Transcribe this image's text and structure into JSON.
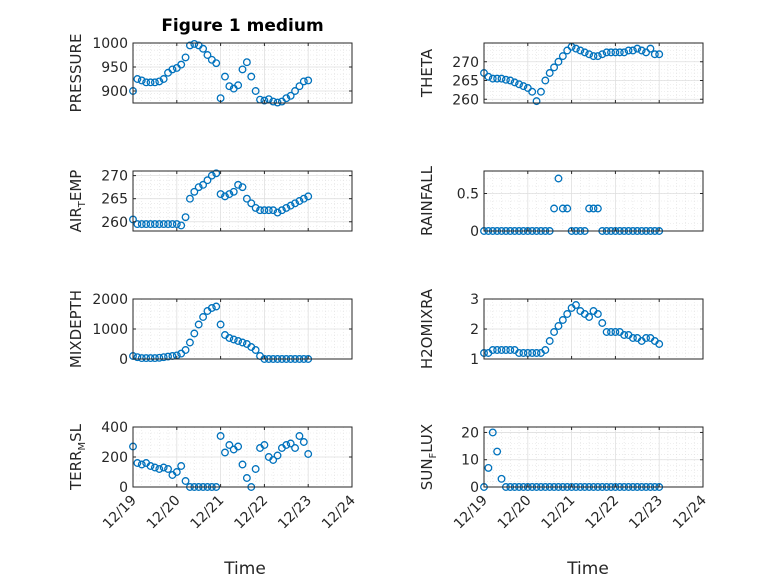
{
  "colors": {
    "marker": "#0072BD",
    "axis": "#262626",
    "grid": "#DFDFDF"
  },
  "chart_data": [
    {
      "type": "scatter",
      "title": "Figure 1 medium",
      "ylabel": "PRESSURE",
      "ylim": [
        875,
        1000
      ],
      "yticks": [
        900,
        950,
        1000
      ],
      "ytick_labels": [
        "900",
        "950",
        "1000"
      ],
      "xlim": [
        0,
        5
      ],
      "xticks": [
        0,
        1,
        2,
        3,
        4,
        5
      ],
      "xtick_labels": [
        "12/19",
        "12/20",
        "12/21",
        "12/22",
        "12/23",
        "12/24"
      ],
      "grid": true,
      "x": [
        0.0,
        0.1,
        0.2,
        0.3,
        0.4,
        0.5,
        0.6,
        0.7,
        0.8,
        0.9,
        1.0,
        1.1,
        1.2,
        1.3,
        1.4,
        1.5,
        1.6,
        1.7,
        1.8,
        1.9,
        2.0,
        2.1,
        2.2,
        2.3,
        2.4,
        2.5,
        2.6,
        2.7,
        2.8,
        2.9,
        3.0,
        3.1,
        3.2,
        3.3,
        3.4,
        3.5,
        3.6,
        3.7,
        3.8,
        3.9,
        4.0
      ],
      "y": [
        900,
        925,
        922,
        918,
        918,
        918,
        920,
        925,
        938,
        945,
        948,
        955,
        970,
        995,
        998,
        995,
        988,
        975,
        965,
        958,
        885,
        930,
        910,
        905,
        912,
        945,
        960,
        930,
        900,
        882,
        880,
        883,
        878,
        876,
        878,
        885,
        890,
        900,
        910,
        920,
        922
      ]
    },
    {
      "type": "scatter",
      "ylabel": "THETA",
      "ylim": [
        259,
        275
      ],
      "yticks": [
        260,
        265,
        270
      ],
      "ytick_labels": [
        "260",
        "265",
        "270"
      ],
      "xlim": [
        0,
        5
      ],
      "xticks": [
        0,
        1,
        2,
        3,
        4,
        5
      ],
      "xtick_labels": [
        "12/19",
        "12/20",
        "12/21",
        "12/22",
        "12/23",
        "12/24"
      ],
      "grid": true,
      "x": [
        0.0,
        0.1,
        0.2,
        0.3,
        0.4,
        0.5,
        0.6,
        0.7,
        0.8,
        0.9,
        1.0,
        1.1,
        1.2,
        1.3,
        1.4,
        1.5,
        1.6,
        1.7,
        1.8,
        1.9,
        2.0,
        2.1,
        2.2,
        2.3,
        2.4,
        2.5,
        2.6,
        2.7,
        2.8,
        2.9,
        3.0,
        3.1,
        3.2,
        3.3,
        3.4,
        3.5,
        3.6,
        3.7,
        3.8,
        3.9,
        4.0
      ],
      "y": [
        267,
        266,
        265.5,
        265.5,
        265.5,
        265.2,
        265,
        264.5,
        264,
        263.5,
        263,
        262,
        259.5,
        262,
        265,
        267,
        268.5,
        270,
        271.5,
        273,
        274,
        273.5,
        273,
        272.5,
        272,
        271.5,
        271.5,
        272,
        272.5,
        272.5,
        272.5,
        272.5,
        272.5,
        273,
        273,
        273.5,
        273,
        272.5,
        273.5,
        272,
        272
      ]
    },
    {
      "type": "scatter",
      "ylabel": "AIR_TEMP",
      "ylim": [
        258,
        271
      ],
      "yticks": [
        260,
        265,
        270
      ],
      "ytick_labels": [
        "260",
        "265",
        "270"
      ],
      "xlim": [
        0,
        5
      ],
      "xticks": [
        0,
        1,
        2,
        3,
        4,
        5
      ],
      "xtick_labels": [
        "12/19",
        "12/20",
        "12/21",
        "12/22",
        "12/23",
        "12/24"
      ],
      "grid": true,
      "x": [
        0.0,
        0.1,
        0.2,
        0.3,
        0.4,
        0.5,
        0.6,
        0.7,
        0.8,
        0.9,
        1.0,
        1.1,
        1.2,
        1.3,
        1.4,
        1.5,
        1.6,
        1.7,
        1.8,
        1.9,
        2.0,
        2.1,
        2.2,
        2.3,
        2.4,
        2.5,
        2.6,
        2.7,
        2.8,
        2.9,
        3.0,
        3.1,
        3.2,
        3.3,
        3.4,
        3.5,
        3.6,
        3.7,
        3.8,
        3.9,
        4.0
      ],
      "y": [
        260.5,
        259.5,
        259.5,
        259.5,
        259.5,
        259.5,
        259.5,
        259.5,
        259.5,
        259.5,
        259.5,
        259.2,
        261,
        265,
        266.5,
        267.5,
        268,
        269,
        270,
        270.5,
        266,
        265.5,
        266,
        266.5,
        268,
        267.5,
        265,
        264,
        263,
        262.5,
        262.5,
        262.5,
        262.5,
        262,
        262.5,
        263,
        263.5,
        264,
        264.5,
        265,
        265.5
      ]
    },
    {
      "type": "scatter",
      "ylabel": "RAINFALL",
      "ylim": [
        0,
        0.8
      ],
      "yticks": [
        0,
        0.5
      ],
      "ytick_labels": [
        "0",
        "0.5"
      ],
      "xlim": [
        0,
        5
      ],
      "xticks": [
        0,
        1,
        2,
        3,
        4,
        5
      ],
      "xtick_labels": [
        "12/19",
        "12/20",
        "12/21",
        "12/22",
        "12/23",
        "12/24"
      ],
      "grid": true,
      "x": [
        0.0,
        0.1,
        0.2,
        0.3,
        0.4,
        0.5,
        0.6,
        0.7,
        0.8,
        0.9,
        1.0,
        1.1,
        1.2,
        1.3,
        1.4,
        1.5,
        1.6,
        1.7,
        1.8,
        1.9,
        2.0,
        2.1,
        2.2,
        2.3,
        2.4,
        2.5,
        2.6,
        2.7,
        2.8,
        2.9,
        3.0,
        3.1,
        3.2,
        3.3,
        3.4,
        3.5,
        3.6,
        3.7,
        3.8,
        3.9,
        4.0
      ],
      "y": [
        0,
        0,
        0,
        0,
        0,
        0,
        0,
        0,
        0,
        0,
        0,
        0,
        0,
        0,
        0,
        0,
        0.3,
        0.7,
        0.3,
        0.3,
        0,
        0,
        0,
        0,
        0.3,
        0.3,
        0.3,
        0,
        0,
        0,
        0,
        0,
        0,
        0,
        0,
        0,
        0,
        0,
        0,
        0,
        0
      ]
    },
    {
      "type": "scatter",
      "ylabel": "MIXDEPTH",
      "ylim": [
        0,
        2000
      ],
      "yticks": [
        0,
        1000,
        2000
      ],
      "ytick_labels": [
        "0",
        "1000",
        "2000"
      ],
      "xlim": [
        0,
        5
      ],
      "xticks": [
        0,
        1,
        2,
        3,
        4,
        5
      ],
      "xtick_labels": [
        "12/19",
        "12/20",
        "12/21",
        "12/22",
        "12/23",
        "12/24"
      ],
      "grid": true,
      "x": [
        0.0,
        0.1,
        0.2,
        0.3,
        0.4,
        0.5,
        0.6,
        0.7,
        0.8,
        0.9,
        1.0,
        1.1,
        1.2,
        1.3,
        1.4,
        1.5,
        1.6,
        1.7,
        1.8,
        1.9,
        2.0,
        2.1,
        2.2,
        2.3,
        2.4,
        2.5,
        2.6,
        2.7,
        2.8,
        2.9,
        3.0,
        3.1,
        3.2,
        3.3,
        3.4,
        3.5,
        3.6,
        3.7,
        3.8,
        3.9,
        4.0
      ],
      "y": [
        100,
        60,
        30,
        30,
        30,
        30,
        40,
        60,
        80,
        100,
        120,
        180,
        300,
        550,
        850,
        1150,
        1400,
        1600,
        1700,
        1750,
        1150,
        800,
        700,
        650,
        600,
        550,
        500,
        400,
        300,
        100,
        0,
        0,
        0,
        0,
        0,
        0,
        0,
        0,
        0,
        0,
        0
      ]
    },
    {
      "type": "scatter",
      "ylabel": "H2OMIXRA",
      "ylim": [
        1,
        3
      ],
      "yticks": [
        1,
        2,
        3
      ],
      "ytick_labels": [
        "1",
        "2",
        "3"
      ],
      "xlim": [
        0,
        5
      ],
      "xticks": [
        0,
        1,
        2,
        3,
        4,
        5
      ],
      "xtick_labels": [
        "12/19",
        "12/20",
        "12/21",
        "12/22",
        "12/23",
        "12/24"
      ],
      "grid": true,
      "x": [
        0.0,
        0.1,
        0.2,
        0.3,
        0.4,
        0.5,
        0.6,
        0.7,
        0.8,
        0.9,
        1.0,
        1.1,
        1.2,
        1.3,
        1.4,
        1.5,
        1.6,
        1.7,
        1.8,
        1.9,
        2.0,
        2.1,
        2.2,
        2.3,
        2.4,
        2.5,
        2.6,
        2.7,
        2.8,
        2.9,
        3.0,
        3.1,
        3.2,
        3.3,
        3.4,
        3.5,
        3.6,
        3.7,
        3.8,
        3.9,
        4.0
      ],
      "y": [
        1.2,
        1.2,
        1.3,
        1.3,
        1.3,
        1.3,
        1.3,
        1.3,
        1.2,
        1.2,
        1.2,
        1.2,
        1.2,
        1.2,
        1.3,
        1.6,
        1.9,
        2.1,
        2.3,
        2.5,
        2.7,
        2.8,
        2.6,
        2.5,
        2.4,
        2.6,
        2.5,
        2.2,
        1.9,
        1.9,
        1.9,
        1.9,
        1.8,
        1.8,
        1.7,
        1.7,
        1.6,
        1.7,
        1.7,
        1.6,
        1.5
      ]
    },
    {
      "type": "scatter",
      "ylabel": "TERR_MSL",
      "ylim": [
        0,
        400
      ],
      "yticks": [
        0,
        200,
        400
      ],
      "ytick_labels": [
        "0",
        "200",
        "400"
      ],
      "xlim": [
        0,
        5
      ],
      "xticks": [
        0,
        1,
        2,
        3,
        4,
        5
      ],
      "xtick_labels": [
        "12/19",
        "12/20",
        "12/21",
        "12/22",
        "12/23",
        "12/24"
      ],
      "grid": true,
      "x": [
        0.0,
        0.1,
        0.2,
        0.3,
        0.4,
        0.5,
        0.6,
        0.7,
        0.8,
        0.9,
        1.0,
        1.1,
        1.2,
        1.3,
        1.4,
        1.5,
        1.6,
        1.7,
        1.8,
        1.9,
        2.0,
        2.1,
        2.2,
        2.3,
        2.4,
        2.5,
        2.6,
        2.7,
        2.8,
        2.9,
        3.0,
        3.1,
        3.2,
        3.3,
        3.4,
        3.5,
        3.6,
        3.7,
        3.8,
        3.9,
        4.0
      ],
      "y": [
        270,
        160,
        150,
        160,
        140,
        130,
        120,
        130,
        120,
        80,
        100,
        140,
        40,
        0,
        0,
        0,
        0,
        0,
        0,
        0,
        340,
        230,
        280,
        250,
        270,
        150,
        60,
        0,
        120,
        260,
        280,
        200,
        180,
        210,
        260,
        280,
        290,
        260,
        340,
        300,
        220
      ]
    },
    {
      "type": "scatter",
      "ylabel": "SUN_FLUX",
      "ylim": [
        0,
        22
      ],
      "yticks": [
        0,
        10,
        20
      ],
      "ytick_labels": [
        "0",
        "10",
        "20"
      ],
      "xlim": [
        0,
        5
      ],
      "xticks": [
        0,
        1,
        2,
        3,
        4,
        5
      ],
      "xtick_labels": [
        "12/19",
        "12/20",
        "12/21",
        "12/22",
        "12/23",
        "12/24"
      ],
      "grid": true,
      "x": [
        0.0,
        0.1,
        0.2,
        0.3,
        0.4,
        0.5,
        0.6,
        0.7,
        0.8,
        0.9,
        1.0,
        1.1,
        1.2,
        1.3,
        1.4,
        1.5,
        1.6,
        1.7,
        1.8,
        1.9,
        2.0,
        2.1,
        2.2,
        2.3,
        2.4,
        2.5,
        2.6,
        2.7,
        2.8,
        2.9,
        3.0,
        3.1,
        3.2,
        3.3,
        3.4,
        3.5,
        3.6,
        3.7,
        3.8,
        3.9,
        4.0
      ],
      "y": [
        0,
        7,
        20,
        13,
        3,
        0,
        0,
        0,
        0,
        0,
        0,
        0,
        0,
        0,
        0,
        0,
        0,
        0,
        0,
        0,
        0,
        0,
        0,
        0,
        0,
        0,
        0,
        0,
        0,
        0,
        0,
        0,
        0,
        0,
        0,
        0,
        0,
        0,
        0,
        0,
        0
      ]
    }
  ],
  "axes_titles": {
    "bottom_left_xlabel": "Time",
    "bottom_right_xlabel": "Time"
  }
}
